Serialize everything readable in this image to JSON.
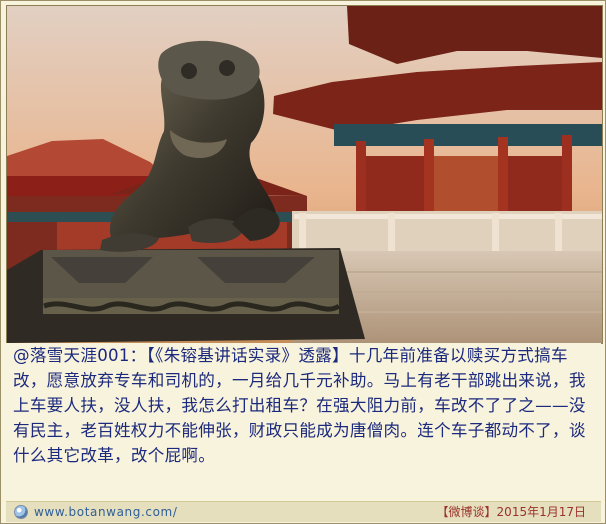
{
  "post": {
    "text": "@落雪天涯001：【《朱镕基讲话实录》透露】十几年前准备以赎买方式搞车改，愿意放弃专车和司机的，一月给几千元补助。马上有老干部跳出来说，我上车要人扶，没人扶，我怎么打出租车？在强大阻力前，车改不了了之——没有民主，老百姓权力不能伸张，财政只能成为唐僧肉。连个车子都动不了，谈什么其它改革，改个屁啊。"
  },
  "footer": {
    "site": "www.botanwang.com/",
    "date": "【微博谈】2015年1月17日"
  },
  "image": {
    "icon": "globe-icon",
    "accent_text": "#1c2a7d",
    "footer_date_color": "#9a322d"
  }
}
